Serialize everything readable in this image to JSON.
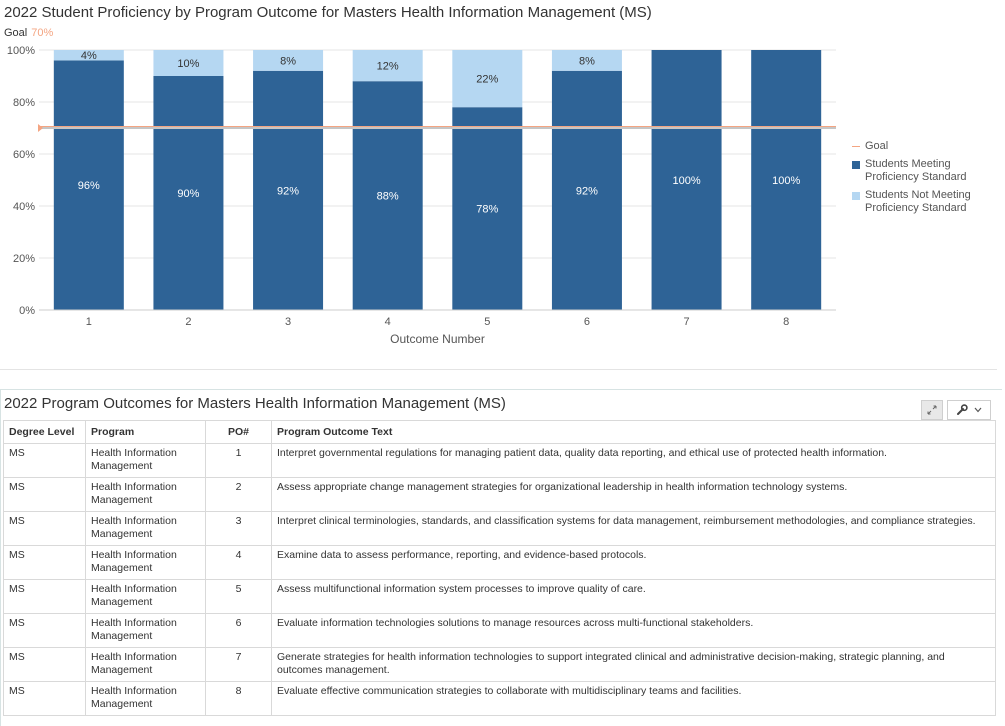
{
  "chart_title": "2022 Student Proficiency by Program Outcome for Masters Health Information Management (MS)",
  "goal_label": "Goal",
  "goal_value_label": "70%",
  "colors": {
    "meeting": "#2e6396",
    "not_meeting": "#b5d7f2",
    "goal": "#f4a582",
    "goal_line": "#c6c6c6"
  },
  "chart_data": {
    "type": "bar",
    "stacked": true,
    "categories": [
      "1",
      "2",
      "3",
      "4",
      "5",
      "6",
      "7",
      "8"
    ],
    "series": [
      {
        "name": "Students Meeting Proficiency Standard",
        "values": [
          96,
          90,
          92,
          88,
          78,
          92,
          100,
          100
        ],
        "labels": [
          "96%",
          "90%",
          "92%",
          "88%",
          "78%",
          "92%",
          "100%",
          "100%"
        ]
      },
      {
        "name": "Students Not Meeting Proficiency Standard",
        "values": [
          4,
          10,
          8,
          12,
          22,
          8,
          0,
          0
        ],
        "labels": [
          "4%",
          "10%",
          "8%",
          "12%",
          "22%",
          "8%",
          "",
          ""
        ]
      }
    ],
    "goal": 70,
    "xlabel": "Outcome Number",
    "ylabel": "",
    "ylim": [
      0,
      100
    ],
    "yticks": [
      "0%",
      "20%",
      "40%",
      "60%",
      "80%",
      "100%"
    ],
    "grid": true,
    "legend_position": "right"
  },
  "legend": [
    "Goal",
    "Students Meeting Proficiency Standard",
    "Students Not Meeting Proficiency Standard"
  ],
  "table": {
    "title": "2022 Program Outcomes for Masters Health Information Management (MS)",
    "headers": [
      "Degree Level",
      "Program",
      "PO#",
      "Program Outcome Text"
    ],
    "rows": [
      [
        "MS",
        "Health Information Management",
        "1",
        "Interpret governmental regulations for managing patient data, quality data reporting, and ethical use of protected health information."
      ],
      [
        "MS",
        "Health Information Management",
        "2",
        "Assess appropriate change management strategies for organizational leadership in health information technology systems."
      ],
      [
        "MS",
        "Health Information Management",
        "3",
        "Interpret clinical terminologies, standards, and classification systems for data management, reimbursement methodologies, and compliance strategies."
      ],
      [
        "MS",
        "Health Information Management",
        "4",
        "Examine data to assess performance, reporting, and evidence-based protocols."
      ],
      [
        "MS",
        "Health Information Management",
        "5",
        "Assess multifunctional information system processes to improve quality of care."
      ],
      [
        "MS",
        "Health Information Management",
        "6",
        "Evaluate information technologies solutions to manage resources across multi-functional stakeholders."
      ],
      [
        "MS",
        "Health Information Management",
        "7",
        "Generate strategies for health information technologies to support integrated clinical and administrative decision-making, strategic planning, and outcomes management."
      ],
      [
        "MS",
        "Health Information Management",
        "8",
        "Evaluate effective communication strategies to collaborate with multidisciplinary teams and facilities."
      ]
    ]
  },
  "icons": {
    "expand": "expand-icon",
    "wrench": "wrench-icon",
    "chevron": "chevron-down-icon"
  }
}
